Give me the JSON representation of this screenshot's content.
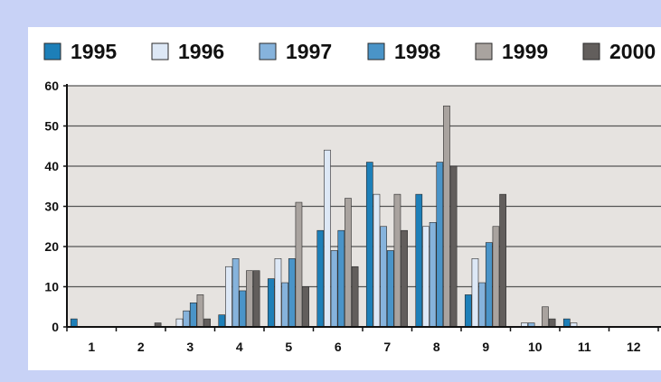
{
  "chart_data": {
    "type": "bar",
    "categories": [
      "1",
      "2",
      "3",
      "4",
      "5",
      "6",
      "7",
      "8",
      "9",
      "10",
      "11",
      "12"
    ],
    "series": [
      {
        "name": "1995",
        "color": "#1d7fb8",
        "values": [
          2,
          0,
          0,
          3,
          12,
          24,
          41,
          33,
          8,
          0,
          2,
          0
        ]
      },
      {
        "name": "1996",
        "color": "#dde8f6",
        "values": [
          0,
          0,
          2,
          15,
          17,
          44,
          33,
          25,
          17,
          1,
          1,
          0
        ]
      },
      {
        "name": "1997",
        "color": "#86b3dc",
        "values": [
          0,
          0,
          4,
          17,
          11,
          19,
          25,
          26,
          11,
          1,
          0,
          0
        ]
      },
      {
        "name": "1998",
        "color": "#4a94c8",
        "values": [
          0,
          0,
          6,
          9,
          17,
          24,
          19,
          41,
          21,
          0,
          0,
          0
        ]
      },
      {
        "name": "1999",
        "color": "#a9a39f",
        "values": [
          0,
          0,
          8,
          14,
          31,
          32,
          33,
          55,
          25,
          5,
          0,
          0
        ]
      },
      {
        "name": "2000",
        "color": "#625e5c",
        "values": [
          0,
          1,
          2,
          14,
          10,
          15,
          24,
          40,
          33,
          2,
          0,
          0
        ]
      }
    ],
    "ylim": [
      0,
      60
    ],
    "yticks": [
      "0",
      "10",
      "20",
      "30",
      "40",
      "50",
      "60"
    ],
    "grid": true,
    "legend_position": "top",
    "plot_background": "#e6e3e0"
  }
}
